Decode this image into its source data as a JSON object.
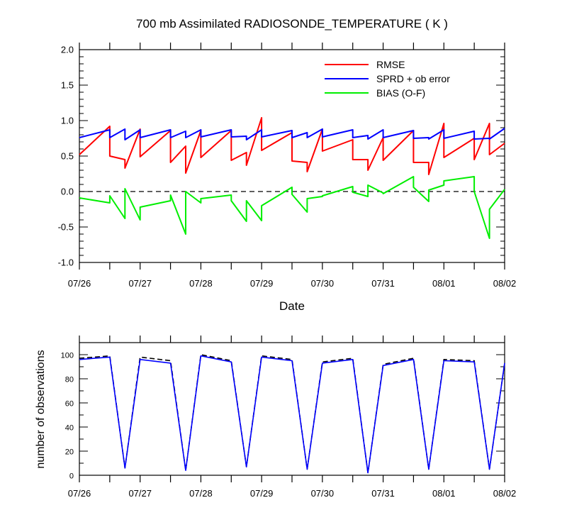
{
  "chart_data": [
    {
      "type": "line",
      "title": "700 mb Assimilated RADIOSONDE_TEMPERATURE ( K )",
      "xlabel": "Date",
      "ylabel": "",
      "xlim": [
        0,
        7
      ],
      "ylim": [
        -1.0,
        2.0
      ],
      "yticks": [
        -1.0,
        -0.5,
        0.0,
        0.5,
        1.0,
        1.5,
        2.0
      ],
      "ytick_labels": [
        "-1.0",
        "-0.5",
        "0.0",
        "0.5",
        "1.0",
        "1.5",
        "2.0"
      ],
      "xtick_positions": [
        0,
        1,
        2,
        3,
        4,
        5,
        6,
        7
      ],
      "xtick_labels": [
        "07/26",
        "07/27",
        "07/28",
        "07/29",
        "07/30",
        "07/31",
        "08/01",
        "08/02"
      ],
      "zero_line": 0.0,
      "grid": false,
      "legend_position": "top-right",
      "series": [
        {
          "name": "RMSE",
          "color": "#ff0000",
          "x": [
            0.0,
            0.5,
            0.5,
            0.75,
            0.75,
            1.0,
            1.0,
            1.5,
            1.5,
            1.75,
            1.75,
            2.0,
            2.0,
            2.5,
            2.5,
            2.75,
            2.75,
            3.0,
            3.0,
            3.5,
            3.5,
            3.75,
            3.75,
            4.0,
            4.0,
            4.5,
            4.5,
            4.75,
            4.75,
            5.0,
            5.0,
            5.5,
            5.5,
            5.75,
            5.75,
            6.0,
            6.0,
            6.5,
            6.5,
            6.75,
            6.75,
            7.0
          ],
          "y": [
            0.52,
            0.92,
            0.5,
            0.45,
            0.33,
            0.88,
            0.49,
            0.86,
            0.41,
            0.64,
            0.26,
            0.86,
            0.48,
            0.86,
            0.44,
            0.55,
            0.37,
            1.04,
            0.58,
            0.83,
            0.43,
            0.41,
            0.28,
            0.88,
            0.57,
            0.73,
            0.45,
            0.45,
            0.3,
            0.76,
            0.44,
            0.86,
            0.41,
            0.41,
            0.24,
            0.96,
            0.48,
            0.75,
            0.45,
            0.96,
            0.52,
            0.68
          ]
        },
        {
          "name": "SPRD + ob error",
          "color": "#0000ff",
          "x": [
            0.0,
            0.5,
            0.5,
            0.75,
            0.75,
            1.0,
            1.0,
            1.5,
            1.5,
            1.75,
            1.75,
            2.0,
            2.0,
            2.5,
            2.5,
            2.75,
            2.75,
            3.0,
            3.0,
            3.5,
            3.5,
            3.75,
            3.75,
            4.0,
            4.0,
            4.5,
            4.5,
            4.75,
            4.75,
            5.0,
            5.0,
            5.5,
            5.5,
            5.75,
            5.75,
            6.0,
            6.0,
            6.5,
            6.5,
            6.75,
            6.75,
            7.0
          ],
          "y": [
            0.76,
            0.87,
            0.76,
            0.88,
            0.73,
            0.87,
            0.76,
            0.87,
            0.76,
            0.85,
            0.76,
            0.87,
            0.77,
            0.87,
            0.77,
            0.78,
            0.73,
            0.87,
            0.77,
            0.86,
            0.76,
            0.83,
            0.76,
            0.88,
            0.77,
            0.87,
            0.76,
            0.79,
            0.74,
            0.87,
            0.76,
            0.86,
            0.75,
            0.76,
            0.74,
            0.87,
            0.75,
            0.85,
            0.74,
            0.75,
            0.74,
            0.89
          ]
        },
        {
          "name": "BIAS (O-F)",
          "color": "#00ee00",
          "x": [
            0.0,
            0.5,
            0.5,
            0.75,
            0.75,
            1.0,
            1.0,
            1.5,
            1.5,
            1.75,
            1.75,
            2.0,
            2.0,
            2.5,
            2.5,
            2.75,
            2.75,
            3.0,
            3.0,
            3.5,
            3.5,
            3.75,
            3.75,
            4.0,
            4.0,
            4.5,
            4.5,
            4.75,
            4.75,
            5.0,
            5.0,
            5.5,
            5.5,
            5.75,
            5.75,
            6.0,
            6.0,
            6.5,
            6.5,
            6.75,
            6.75,
            7.0
          ],
          "y": [
            -0.09,
            -0.16,
            -0.06,
            -0.38,
            0.04,
            -0.4,
            -0.22,
            -0.13,
            -0.05,
            -0.6,
            0.0,
            -0.16,
            -0.1,
            -0.05,
            -0.13,
            -0.42,
            -0.13,
            -0.41,
            -0.2,
            0.06,
            -0.04,
            -0.29,
            -0.1,
            -0.07,
            -0.06,
            0.07,
            -0.01,
            -0.07,
            0.09,
            -0.02,
            -0.03,
            0.21,
            0.06,
            -0.14,
            0.02,
            0.09,
            0.15,
            0.21,
            0.0,
            -0.66,
            -0.25,
            0.03
          ]
        }
      ]
    },
    {
      "type": "line",
      "title": "",
      "xlabel": "",
      "ylabel": "number of observations",
      "xlim": [
        0,
        7
      ],
      "ylim": [
        0,
        110
      ],
      "yticks": [
        0,
        20,
        40,
        60,
        80,
        100
      ],
      "ytick_labels": [
        "0",
        "20",
        "40",
        "60",
        "80",
        "100"
      ],
      "xtick_positions": [
        0,
        1,
        2,
        3,
        4,
        5,
        6,
        7
      ],
      "xtick_labels": [
        "07/26",
        "07/27",
        "07/28",
        "07/29",
        "07/30",
        "07/31",
        "08/01",
        "08/02"
      ],
      "grid": false,
      "series": [
        {
          "color": "#000000",
          "dash": true,
          "x": [
            0.0,
            0.5,
            0.75,
            1.0,
            1.5,
            1.75,
            2.0,
            2.5,
            2.75,
            3.0,
            3.5,
            3.75,
            4.0,
            4.5,
            4.75,
            5.0,
            5.5,
            5.75,
            6.0,
            6.5,
            6.75,
            7.0
          ],
          "y": [
            97,
            99,
            6,
            98,
            95,
            4,
            100,
            95,
            7,
            99,
            96,
            5,
            94,
            97,
            2,
            92,
            97,
            5,
            96,
            95,
            5,
            93
          ]
        },
        {
          "color": "#0000ff",
          "x": [
            0.0,
            0.5,
            0.75,
            1.0,
            1.5,
            1.75,
            2.0,
            2.5,
            2.75,
            3.0,
            3.5,
            3.75,
            4.0,
            4.5,
            4.75,
            5.0,
            5.5,
            5.75,
            6.0,
            6.5,
            6.75,
            7.0
          ],
          "y": [
            96,
            98,
            6,
            96,
            93,
            4,
            99,
            94,
            7,
            98,
            95,
            5,
            93,
            96,
            2,
            91,
            96,
            5,
            95,
            94,
            5,
            93
          ]
        }
      ]
    }
  ]
}
